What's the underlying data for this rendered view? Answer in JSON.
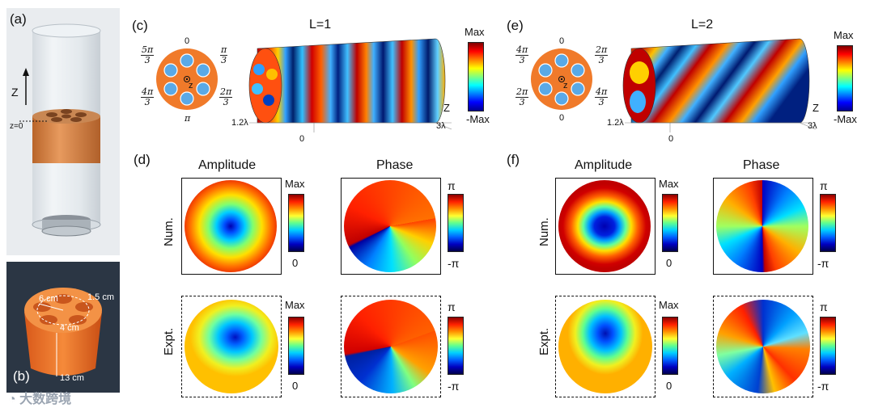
{
  "panels": {
    "a": {
      "label": "(a)",
      "axis_label": "Z",
      "origin_label": "z=0"
    },
    "b": {
      "label": "(b)",
      "dim_6": "6 cm",
      "dim_15": "1.5 cm",
      "dim_4": "4 cm",
      "dim_13": "13 cm"
    },
    "c": {
      "label": "(c)",
      "title": "L=1",
      "phases": {
        "top": "0",
        "bottom": "π",
        "ul_num": "5π",
        "ul_den": "3",
        "ur_num": "π",
        "ur_den": "3",
        "ll_num": "4π",
        "ll_den": "3",
        "lr_num": "2π",
        "lr_den": "3"
      },
      "center": "z",
      "cb_max": "Max",
      "cb_min": "-Max",
      "axis_z": "Z",
      "axis_12": "1.2λ",
      "axis_3": "3λ",
      "axis_0": "0"
    },
    "e": {
      "label": "(e)",
      "title": "L=2",
      "phases": {
        "top": "0",
        "bottom": "0",
        "ul_num": "4π",
        "ul_den": "3",
        "ur_num": "2π",
        "ur_den": "3",
        "ll_num": "2π",
        "ll_den": "3",
        "lr_num": "4π",
        "lr_den": "3"
      },
      "center": "z",
      "cb_max": "Max",
      "cb_min": "-Max",
      "axis_z": "Z",
      "axis_12": "1.2λ",
      "axis_3": "3λ",
      "axis_0": "0"
    },
    "d": {
      "label": "(d)",
      "amp_title": "Amplitude",
      "phase_title": "Phase",
      "row_num": "Num.",
      "row_expt": "Expt.",
      "amp_max": "Max",
      "amp_min": "0",
      "ph_max": "π",
      "ph_min": "-π"
    },
    "f": {
      "label": "(f)",
      "amp_title": "Amplitude",
      "phase_title": "Phase",
      "row_num": "Num.",
      "row_expt": "Expt.",
      "amp_max": "Max",
      "amp_min": "0",
      "ph_max": "π",
      "ph_min": "-π"
    }
  },
  "watermark": "大数跨境",
  "colors": {
    "orange": "#f07a2a",
    "speaker_blue": "#5aa9e6",
    "frame": "#111111"
  }
}
